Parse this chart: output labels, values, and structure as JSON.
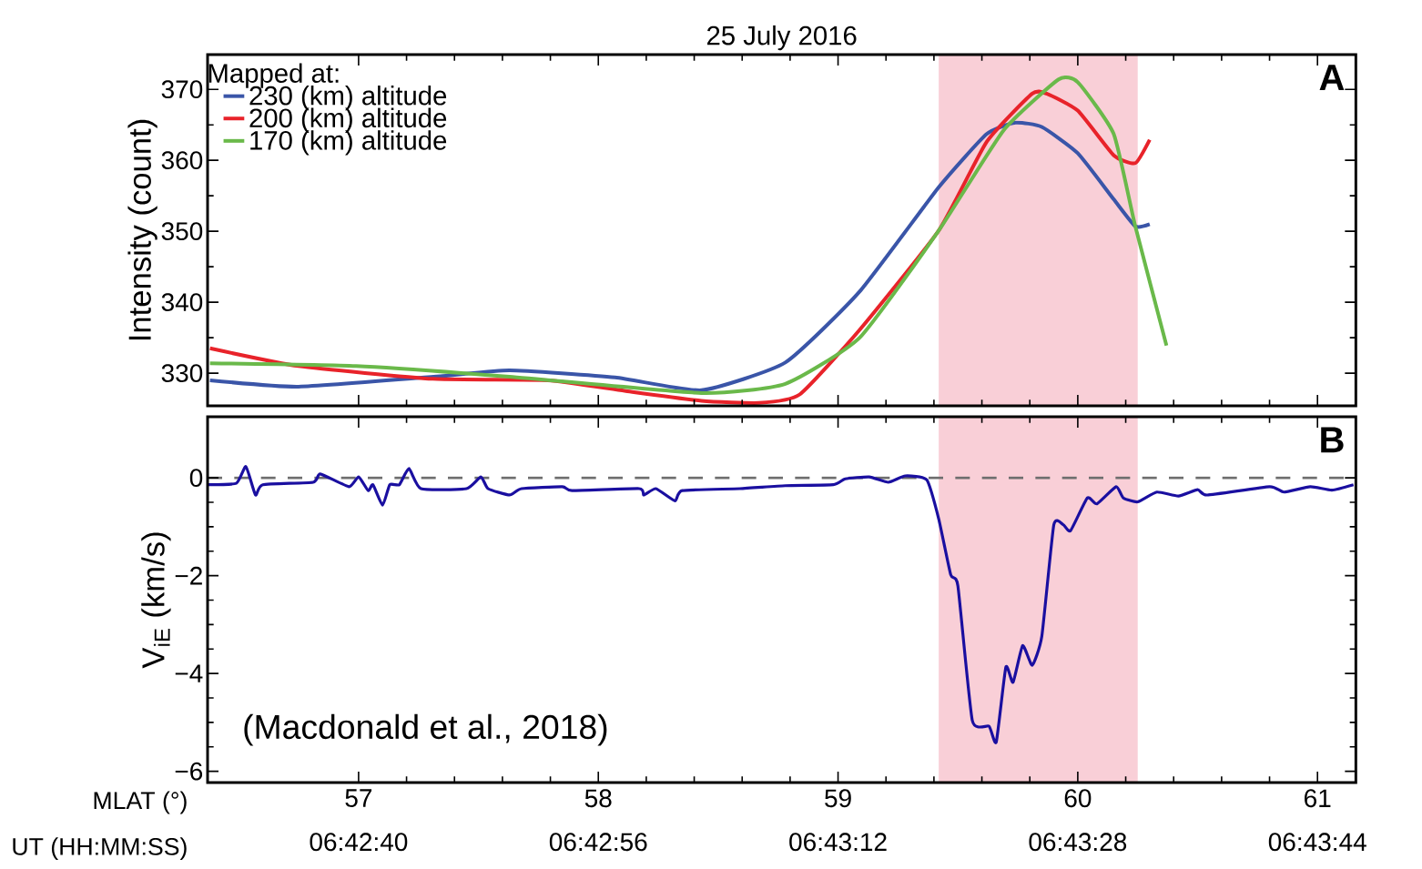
{
  "chart_data": [
    {
      "type": "line",
      "title": "25 July 2016",
      "ylabel": "Intensity (count)",
      "legend_title": "Mapped at:",
      "legend": "top left",
      "tick_labels": "y",
      "xlim": [
        56.37,
        61.16
      ],
      "xticks": [
        57,
        58,
        59,
        60,
        61
      ],
      "ylim": [
        325.4,
        374.9
      ],
      "yticks": [
        330,
        340,
        350,
        360,
        370
      ],
      "series": [
        {
          "name": "230 (km) altitude",
          "color": "#3a55a8",
          "x": [
            56.38,
            56.75,
            57.35,
            57.63,
            58.07,
            58.43,
            58.78,
            59.09,
            59.42,
            59.62,
            59.74,
            59.85,
            60.0,
            60.15,
            60.24,
            60.3
          ],
          "values": [
            329.0,
            328.1,
            329.6,
            330.4,
            329.4,
            327.6,
            331.5,
            341.5,
            356.2,
            363.7,
            365.3,
            364.7,
            361.0,
            354.5,
            350.7,
            351.0
          ]
        },
        {
          "name": "200 (km) altitude",
          "color": "#e8232a",
          "x": [
            56.38,
            56.75,
            57.31,
            57.79,
            58.11,
            58.43,
            58.67,
            58.84,
            59.09,
            59.42,
            59.62,
            59.81,
            59.87,
            60.0,
            60.15,
            60.24,
            60.3
          ],
          "values": [
            333.5,
            331.0,
            329.2,
            329.0,
            327.5,
            326.1,
            325.8,
            327.0,
            336.1,
            350.1,
            362.6,
            369.4,
            369.4,
            367.0,
            360.7,
            359.6,
            362.9
          ]
        },
        {
          "name": "170 (km) altitude",
          "color": "#6ab94a",
          "x": [
            56.38,
            56.99,
            57.63,
            58.43,
            58.78,
            59.09,
            59.42,
            59.69,
            59.92,
            60.0,
            60.15,
            60.24,
            60.37
          ],
          "values": [
            331.4,
            331.0,
            329.5,
            327.2,
            328.5,
            335.0,
            350.1,
            364.2,
            371.4,
            371.0,
            363.7,
            350.7,
            333.9
          ]
        }
      ],
      "bands": [
        {
          "axis": "x",
          "from": 59.42,
          "to": 60.25,
          "color": "#f9cfd7"
        }
      ],
      "annotations": [
        "A"
      ]
    },
    {
      "type": "line",
      "ylabel": "V$_{iE}$ (km/s)",
      "xlabel": "MLAT (°)",
      "x2label": "UT (HH:MM:SS)",
      "xlim": [
        56.37,
        61.16
      ],
      "xticks": [
        57,
        58,
        59,
        60,
        61
      ],
      "x2lim": [
        6.708311,
        6.7296
      ],
      "x2ticks": [
        {
          "value": 6.711111,
          "label": "06:42:40"
        },
        {
          "value": 6.715556,
          "label": "06:42:56"
        },
        {
          "value": 6.72,
          "label": "06:43:12"
        },
        {
          "value": 6.724444,
          "label": "06:43:28"
        },
        {
          "value": 6.728889,
          "label": "06:43:44"
        }
      ],
      "ylim": [
        -6.23,
        1.25
      ],
      "yticks": [
        0,
        {
          "value": -2,
          "label": "−2"
        },
        {
          "value": -4,
          "label": "−4"
        },
        {
          "value": -6,
          "label": "−6"
        }
      ],
      "series": [
        {
          "color": "#1a0fa0",
          "x": [
            56.37,
            56.49,
            56.53,
            56.57,
            56.6,
            56.81,
            56.84,
            56.96,
            57.0,
            57.04,
            57.06,
            57.1,
            57.13,
            57.17,
            57.21,
            57.26,
            57.45,
            57.51,
            57.54,
            57.63,
            57.68,
            57.85,
            57.89,
            58.17,
            58.19,
            58.24,
            58.32,
            58.35,
            58.59,
            58.78,
            58.98,
            59.03,
            59.13,
            59.21,
            59.28,
            59.37,
            59.42,
            59.47,
            59.5,
            59.56,
            59.63,
            59.66,
            59.7,
            59.73,
            59.77,
            59.81,
            59.85,
            59.9,
            59.94,
            59.97,
            60.04,
            60.08,
            60.16,
            60.19,
            60.25,
            60.33,
            60.42,
            60.5,
            60.54,
            60.8,
            60.86,
            60.97,
            61.06,
            61.15
          ],
          "values": [
            -0.14,
            -0.11,
            0.23,
            -0.35,
            -0.14,
            -0.09,
            0.08,
            -0.18,
            0.02,
            -0.26,
            -0.14,
            -0.56,
            -0.14,
            -0.14,
            0.19,
            -0.22,
            -0.22,
            0.02,
            -0.22,
            -0.35,
            -0.22,
            -0.18,
            -0.26,
            -0.22,
            -0.35,
            -0.22,
            -0.47,
            -0.26,
            -0.22,
            -0.16,
            -0.14,
            -0.02,
            0.02,
            -0.09,
            0.04,
            -0.04,
            -0.84,
            -1.98,
            -2.21,
            -4.96,
            -5.08,
            -5.4,
            -3.87,
            -4.18,
            -3.43,
            -3.83,
            -3.24,
            -0.96,
            -0.96,
            -1.08,
            -0.41,
            -0.53,
            -0.18,
            -0.41,
            -0.49,
            -0.29,
            -0.37,
            -0.24,
            -0.35,
            -0.18,
            -0.29,
            -0.18,
            -0.25,
            -0.14
          ]
        }
      ],
      "ref_lines": [
        {
          "axis": "y",
          "value": 0,
          "color": "#6e6e6e",
          "line_style": "dashed"
        }
      ],
      "bands": [
        {
          "axis": "x",
          "from": 59.42,
          "to": 60.25,
          "color": "#f9cfd7"
        }
      ],
      "annotations": [
        "B",
        "(Macdonald et al., 2018)"
      ]
    }
  ]
}
